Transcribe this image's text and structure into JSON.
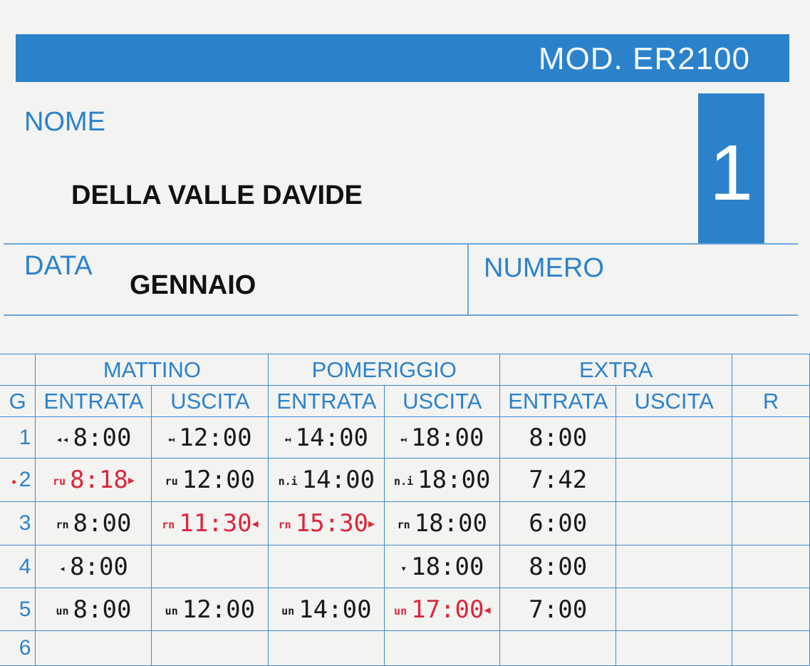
{
  "header": {
    "model": "MOD. ER2100",
    "card_number": "1"
  },
  "fields": {
    "name_label": "NOME",
    "name_value": "DELLA VALLE DAVIDE",
    "date_label": "DATA",
    "date_value": "GENNAIO",
    "number_label": "NUMERO"
  },
  "colors": {
    "form_blue": "#2b82cb",
    "stamp_red": "#d9283c",
    "stamp_black": "#1a1a1a"
  },
  "table": {
    "groups": [
      "MATTINO",
      "POMERIGGIO",
      "EXTRA"
    ],
    "columns": [
      "G",
      "ENTRATA",
      "USCITA",
      "ENTRATA",
      "USCITA",
      "ENTRATA",
      "USCITA",
      "R"
    ],
    "rows": [
      {
        "day": "1",
        "marked": false,
        "cells": [
          {
            "prefix": "◂◂",
            "time": "8:00",
            "red": false
          },
          {
            "prefix": "↤",
            "time": "12:00",
            "red": false
          },
          {
            "prefix": "↤",
            "time": "14:00",
            "red": false
          },
          {
            "prefix": "↤",
            "time": "18:00",
            "red": false
          },
          {
            "prefix": "",
            "time": "8:00",
            "red": false
          },
          {
            "prefix": "",
            "time": "",
            "red": false
          },
          {
            "prefix": "",
            "time": "",
            "red": false
          }
        ]
      },
      {
        "day": "2",
        "marked": true,
        "cells": [
          {
            "prefix": "ru",
            "time": "8:18",
            "red": true,
            "mark": "▸"
          },
          {
            "prefix": "ru",
            "time": "12:00",
            "red": false
          },
          {
            "prefix": "n.i",
            "time": "14:00",
            "red": false
          },
          {
            "prefix": "n.i",
            "time": "18:00",
            "red": false
          },
          {
            "prefix": "",
            "time": "7:42",
            "red": false
          },
          {
            "prefix": "",
            "time": "",
            "red": false
          },
          {
            "prefix": "",
            "time": "",
            "red": false
          }
        ]
      },
      {
        "day": "3",
        "marked": false,
        "cells": [
          {
            "prefix": "rn",
            "time": "8:00",
            "red": false
          },
          {
            "prefix": "rn",
            "time": "11:30",
            "red": true,
            "mark": "◂"
          },
          {
            "prefix": "rn",
            "time": "15:30",
            "red": true,
            "mark": "▸"
          },
          {
            "prefix": "rn",
            "time": "18:00",
            "red": false
          },
          {
            "prefix": "",
            "time": "6:00",
            "red": false
          },
          {
            "prefix": "",
            "time": "",
            "red": false
          },
          {
            "prefix": "",
            "time": "",
            "red": false
          }
        ]
      },
      {
        "day": "4",
        "marked": false,
        "cells": [
          {
            "prefix": "◂",
            "time": "8:00",
            "red": false
          },
          {
            "prefix": "",
            "time": "",
            "red": false
          },
          {
            "prefix": "",
            "time": "",
            "red": false
          },
          {
            "prefix": "▾",
            "time": "18:00",
            "red": false
          },
          {
            "prefix": "",
            "time": "8:00",
            "red": false
          },
          {
            "prefix": "",
            "time": "",
            "red": false
          },
          {
            "prefix": "",
            "time": "",
            "red": false
          }
        ]
      },
      {
        "day": "5",
        "marked": false,
        "cells": [
          {
            "prefix": "un",
            "time": "8:00",
            "red": false
          },
          {
            "prefix": "un",
            "time": "12:00",
            "red": false
          },
          {
            "prefix": "un",
            "time": "14:00",
            "red": false
          },
          {
            "prefix": "un",
            "time": "17:00",
            "red": true,
            "mark": "◂"
          },
          {
            "prefix": "",
            "time": "7:00",
            "red": false
          },
          {
            "prefix": "",
            "time": "",
            "red": false
          },
          {
            "prefix": "",
            "time": "",
            "red": false
          }
        ]
      },
      {
        "day": "6",
        "marked": false,
        "cells": [
          {
            "prefix": "",
            "time": "",
            "red": false
          },
          {
            "prefix": "",
            "time": "",
            "red": false
          },
          {
            "prefix": "",
            "time": "",
            "red": false
          },
          {
            "prefix": "",
            "time": "",
            "red": false
          },
          {
            "prefix": "",
            "time": "",
            "red": false
          },
          {
            "prefix": "",
            "time": "",
            "red": false
          },
          {
            "prefix": "",
            "time": "",
            "red": false
          }
        ]
      }
    ]
  }
}
